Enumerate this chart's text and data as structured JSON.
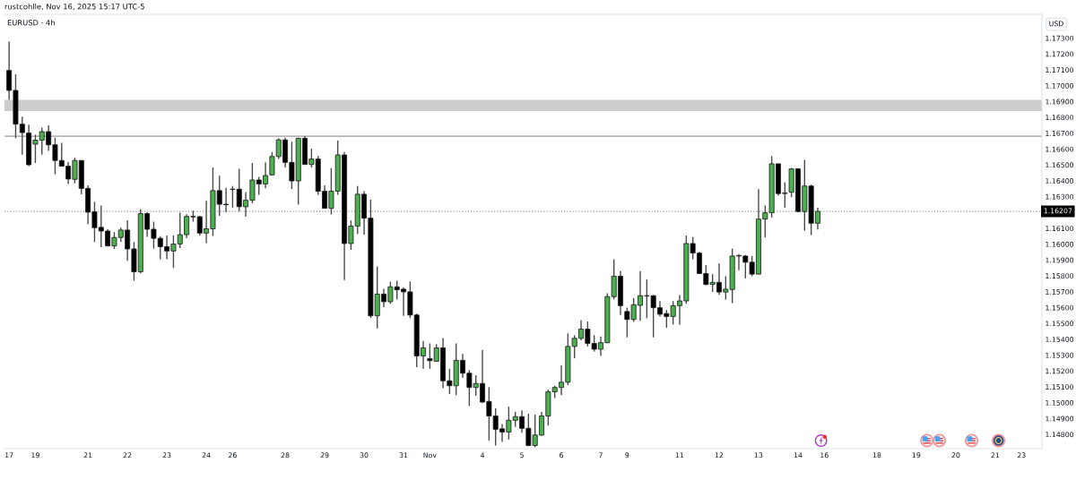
{
  "chart_data": {
    "type": "candlestick",
    "title": "EURUSD · 4h",
    "ylabel": "USD",
    "annotations": [
      "rustcohlle, Nov 16, 2025 15:17 UTC-5"
    ],
    "categories": [
      "17",
      null,
      null,
      null,
      "19",
      null,
      null,
      null,
      null,
      null,
      null,
      null,
      "21",
      null,
      null,
      null,
      null,
      null,
      "22",
      null,
      null,
      null,
      null,
      null,
      "23",
      null,
      null,
      null,
      null,
      null,
      "24",
      null,
      null,
      null,
      "26",
      null,
      null,
      null,
      null,
      null,
      null,
      null,
      "28",
      null,
      null,
      null,
      null,
      null,
      "29",
      null,
      null,
      null,
      null,
      null,
      "30",
      null,
      null,
      null,
      null,
      null,
      "31",
      null,
      null,
      null,
      "Nov",
      null,
      null,
      null,
      null,
      null,
      null,
      null,
      "4",
      null,
      null,
      null,
      null,
      null,
      "5",
      null,
      null,
      null,
      null,
      null,
      "6",
      null,
      null,
      null,
      null,
      null,
      "7",
      null,
      null,
      null,
      "9",
      null,
      null,
      null,
      null,
      null,
      null,
      null,
      "11",
      null,
      null,
      null,
      null,
      null,
      "12",
      null,
      null,
      null,
      null,
      null,
      "13",
      null,
      null,
      null,
      null,
      null,
      "14",
      null,
      null,
      null,
      "16",
      null,
      null,
      null,
      null,
      null,
      null,
      null,
      "18",
      null,
      null,
      null,
      null,
      null,
      "19",
      null,
      null,
      null,
      null,
      null,
      "20",
      null,
      null,
      null,
      null,
      null,
      "21",
      null,
      null,
      null,
      "23",
      null,
      null
    ],
    "ohlc": [
      [
        1.17096,
        1.17279,
        1.16911,
        1.1697
      ],
      [
        1.1697,
        1.17072,
        1.16668,
        1.16757
      ],
      [
        1.16757,
        1.16804,
        1.16565,
        1.16704
      ],
      [
        1.16701,
        1.16753,
        1.16493,
        1.16501
      ],
      [
        1.16631,
        1.16691,
        1.16512,
        1.16656
      ],
      [
        1.16656,
        1.16735,
        1.16565,
        1.1671
      ],
      [
        1.1671,
        1.1675,
        1.16588,
        1.16627
      ],
      [
        1.16627,
        1.16672,
        1.16441,
        1.16528
      ],
      [
        1.16528,
        1.1664,
        1.16489,
        1.16492
      ],
      [
        1.16492,
        1.16518,
        1.1638,
        1.16411
      ],
      [
        1.16409,
        1.16545,
        1.16384,
        1.16528
      ],
      [
        1.16528,
        1.16528,
        1.16315,
        1.16352
      ],
      [
        1.16352,
        1.16371,
        1.16126,
        1.16202
      ],
      [
        1.16204,
        1.16267,
        1.16013,
        1.16104
      ],
      [
        1.16106,
        1.16244,
        1.15981,
        1.16083
      ],
      [
        1.16083,
        1.16094,
        1.15985,
        1.15989
      ],
      [
        1.15989,
        1.16076,
        1.1597,
        1.16042
      ],
      [
        1.16042,
        1.16104,
        1.16013,
        1.16089
      ],
      [
        1.16089,
        1.1615,
        1.15895,
        1.1597
      ],
      [
        1.1597,
        1.16013,
        1.15769,
        1.15826
      ],
      [
        1.15826,
        1.16221,
        1.15816,
        1.16193
      ],
      [
        1.16193,
        1.16202,
        1.16046,
        1.16094
      ],
      [
        1.16094,
        1.16142,
        1.15972,
        1.16037
      ],
      [
        1.16037,
        1.16051,
        1.15905,
        1.15984
      ],
      [
        1.15984,
        1.16055,
        1.15905,
        1.15957
      ],
      [
        1.15957,
        1.16055,
        1.1585,
        1.16001
      ],
      [
        1.16001,
        1.16198,
        1.15976,
        1.1606
      ],
      [
        1.1606,
        1.16189,
        1.16038,
        1.16175
      ],
      [
        1.16175,
        1.16211,
        1.16142,
        1.16172
      ],
      [
        1.16173,
        1.16179,
        1.16055,
        1.1607
      ],
      [
        1.1607,
        1.16273,
        1.16007,
        1.16097
      ],
      [
        1.16097,
        1.16484,
        1.16051,
        1.16338
      ],
      [
        1.16338,
        1.16432,
        1.16179,
        1.16252
      ],
      [
        1.16252,
        1.16356,
        1.16202,
        1.16249
      ],
      [
        1.16347,
        1.16367,
        1.1623,
        1.16345
      ],
      [
        1.16347,
        1.16475,
        1.16207,
        1.16236
      ],
      [
        1.16236,
        1.16328,
        1.16173,
        1.16277
      ],
      [
        1.16277,
        1.16512,
        1.16258,
        1.16405
      ],
      [
        1.16405,
        1.16424,
        1.16311,
        1.1638
      ],
      [
        1.1638,
        1.16516,
        1.16352,
        1.16433
      ],
      [
        1.16437,
        1.16582,
        1.16432,
        1.16553
      ],
      [
        1.16553,
        1.16668,
        1.16537,
        1.16658
      ],
      [
        1.16658,
        1.16672,
        1.16484,
        1.16516
      ],
      [
        1.16516,
        1.16646,
        1.16348,
        1.16399
      ],
      [
        1.16399,
        1.16672,
        1.16249,
        1.16668
      ],
      [
        1.16668,
        1.16681,
        1.16503,
        1.16503
      ],
      [
        1.16503,
        1.16602,
        1.16484,
        1.16537
      ],
      [
        1.16537,
        1.16556,
        1.16311,
        1.16334
      ],
      [
        1.16334,
        1.16371,
        1.16226,
        1.16226
      ],
      [
        1.16226,
        1.1648,
        1.16187,
        1.16334
      ],
      [
        1.16334,
        1.16654,
        1.16311,
        1.16563
      ],
      [
        1.16563,
        1.16582,
        1.15773,
        1.16004
      ],
      [
        1.16004,
        1.1615,
        1.15964,
        1.16114
      ],
      [
        1.16114,
        1.16367,
        1.16064,
        1.16315
      ],
      [
        1.16315,
        1.16334,
        1.1606,
        1.16164
      ],
      [
        1.16164,
        1.16281,
        1.15534,
        1.15548
      ],
      [
        1.15548,
        1.15859,
        1.15468,
        1.15685
      ],
      [
        1.15685,
        1.15718,
        1.15603,
        1.15637
      ],
      [
        1.15637,
        1.15763,
        1.15624,
        1.15731
      ],
      [
        1.15731,
        1.15769,
        1.1565,
        1.15712
      ],
      [
        1.15716,
        1.15727,
        1.15548,
        1.15699
      ],
      [
        1.15699,
        1.15765,
        1.15534,
        1.15553
      ],
      [
        1.15553,
        1.15562,
        1.15224,
        1.15295
      ],
      [
        1.15295,
        1.15389,
        1.15214,
        1.15346
      ],
      [
        1.15278,
        1.15374,
        1.15214,
        1.15265
      ],
      [
        1.15261,
        1.1537,
        1.15261,
        1.15346
      ],
      [
        1.15346,
        1.15408,
        1.15092,
        1.15138
      ],
      [
        1.15138,
        1.15214,
        1.15054,
        1.15107
      ],
      [
        1.15107,
        1.15374,
        1.15048,
        1.15267
      ],
      [
        1.15267,
        1.15308,
        1.15157,
        1.15186
      ],
      [
        1.15186,
        1.15205,
        1.14979,
        1.15096
      ],
      [
        1.15096,
        1.15173,
        1.15044,
        1.15121
      ],
      [
        1.15121,
        1.15333,
        1.14998,
        1.15004
      ],
      [
        1.15008,
        1.15098,
        1.14762,
        1.14916
      ],
      [
        1.14916,
        1.14964,
        1.1473,
        1.14832
      ],
      [
        1.14835,
        1.14866,
        1.14753,
        1.14815
      ],
      [
        1.14815,
        1.14975,
        1.14768,
        1.14889
      ],
      [
        1.14889,
        1.14941,
        1.14847,
        1.14912
      ],
      [
        1.14912,
        1.14951,
        1.1481,
        1.14838
      ],
      [
        1.14838,
        1.14931,
        1.14725,
        1.1473
      ],
      [
        1.1473,
        1.14925,
        1.14719,
        1.14796
      ],
      [
        1.14796,
        1.14941,
        1.14791,
        1.14916
      ],
      [
        1.14916,
        1.15082,
        1.14856,
        1.15069
      ],
      [
        1.15069,
        1.15107,
        1.15029,
        1.15096
      ],
      [
        1.15096,
        1.15236,
        1.15048,
        1.15129
      ],
      [
        1.15129,
        1.15437,
        1.15111,
        1.15355
      ],
      [
        1.15355,
        1.15425,
        1.1528,
        1.15406
      ],
      [
        1.15406,
        1.15521,
        1.15393,
        1.15464
      ],
      [
        1.15464,
        1.15512,
        1.15355,
        1.15374
      ],
      [
        1.15374,
        1.15425,
        1.15322,
        1.15337
      ],
      [
        1.15337,
        1.15417,
        1.15295,
        1.15378
      ],
      [
        1.15378,
        1.1569,
        1.15378,
        1.15669
      ],
      [
        1.15669,
        1.15905,
        1.15652,
        1.15798
      ],
      [
        1.15798,
        1.15832,
        1.15553,
        1.15612
      ],
      [
        1.15575,
        1.15599,
        1.15412,
        1.15525
      ],
      [
        1.15525,
        1.1566,
        1.1551,
        1.15618
      ],
      [
        1.15614,
        1.1583,
        1.15516,
        1.15675
      ],
      [
        1.15675,
        1.15777,
        1.15534,
        1.15673
      ],
      [
        1.15675,
        1.15679,
        1.15412,
        1.15599
      ],
      [
        1.15599,
        1.15641,
        1.15544,
        1.15558
      ],
      [
        1.15562,
        1.15585,
        1.15472,
        1.15544
      ],
      [
        1.15544,
        1.15641,
        1.15493,
        1.15612
      ],
      [
        1.15612,
        1.15679,
        1.15493,
        1.15642
      ],
      [
        1.15642,
        1.16055,
        1.15624,
        1.16004
      ],
      [
        1.16004,
        1.16046,
        1.15905,
        1.15944
      ],
      [
        1.15944,
        1.15951,
        1.15811,
        1.15815
      ],
      [
        1.15815,
        1.15868,
        1.15741,
        1.15746
      ],
      [
        1.15746,
        1.15811,
        1.15699,
        1.15759
      ],
      [
        1.15759,
        1.15878,
        1.15681,
        1.15698
      ],
      [
        1.15698,
        1.15798,
        1.1565,
        1.15716
      ],
      [
        1.15714,
        1.15972,
        1.15628,
        1.15925
      ],
      [
        1.15925,
        1.15938,
        1.15835,
        1.15928
      ],
      [
        1.15925,
        1.15932,
        1.15784,
        1.15886
      ],
      [
        1.15886,
        1.15925,
        1.15798,
        1.15811
      ],
      [
        1.15811,
        1.16347,
        1.15811,
        1.16158
      ],
      [
        1.16158,
        1.16244,
        1.16042,
        1.16198
      ],
      [
        1.16198,
        1.16556,
        1.16168,
        1.16507
      ],
      [
        1.16507,
        1.16507,
        1.16306,
        1.16319
      ],
      [
        1.16319,
        1.1639,
        1.1623,
        1.16324
      ],
      [
        1.16328,
        1.1648,
        1.16296,
        1.16475
      ],
      [
        1.16475,
        1.16478,
        1.16202,
        1.16206
      ],
      [
        1.16206,
        1.16532,
        1.16085,
        1.16367
      ],
      [
        1.16367,
        1.16375,
        1.16057,
        1.16132
      ],
      [
        1.16132,
        1.1623,
        1.16093,
        1.16207
      ],
      null,
      null,
      null,
      null,
      null,
      null,
      null,
      null,
      null,
      null,
      null,
      null,
      null,
      null,
      null,
      null,
      null,
      null,
      null,
      null,
      null,
      null,
      null,
      null,
      null,
      null,
      null,
      null,
      null,
      null,
      null,
      null,
      null
    ],
    "colors": [
      "#000000",
      "#000000",
      "#000000",
      "#000000",
      "#4caf50",
      "#4caf50",
      "#000000",
      "#000000",
      "#000000",
      "#000000",
      "#4caf50",
      "#000000",
      "#000000",
      "#000000",
      "#000000",
      "#000000",
      "#4caf50",
      "#4caf50",
      "#000000",
      "#000000",
      "#4caf50",
      "#000000",
      "#000000",
      "#000000",
      "#000000",
      "#4caf50",
      "#4caf50",
      "#4caf50",
      "#000000",
      "#000000",
      "#4caf50",
      "#4caf50",
      "#000000",
      "#000000",
      "#000000",
      "#000000",
      "#4caf50",
      "#4caf50",
      "#000000",
      "#4caf50",
      "#4caf50",
      "#4caf50",
      "#000000",
      "#000000",
      "#4caf50",
      "#000000",
      "#4caf50",
      "#000000",
      "#000000",
      "#4caf50",
      "#4caf50",
      "#000000",
      "#4caf50",
      "#4caf50",
      "#000000",
      "#000000",
      "#4caf50",
      "#000000",
      "#4caf50",
      "#000000",
      "#000000",
      "#000000",
      "#000000",
      "#4caf50",
      "#000000",
      "#4caf50",
      "#000000",
      "#000000",
      "#4caf50",
      "#000000",
      "#000000",
      "#4caf50",
      "#000000",
      "#000000",
      "#000000",
      "#000000",
      "#4caf50",
      "#4caf50",
      "#000000",
      "#000000",
      "#4caf50",
      "#4caf50",
      "#4caf50",
      "#4caf50",
      "#4caf50",
      "#4caf50",
      "#4caf50",
      "#4caf50",
      "#000000",
      "#000000",
      "#4caf50",
      "#4caf50",
      "#4caf50",
      "#000000",
      "#000000",
      "#4caf50",
      "#4caf50",
      "#000000",
      "#000000",
      "#000000",
      "#000000",
      "#4caf50",
      "#4caf50",
      "#4caf50",
      "#000000",
      "#000000",
      "#000000",
      "#4caf50",
      "#000000",
      "#4caf50",
      "#4caf50",
      "#4caf50",
      "#000000",
      "#000000",
      "#4caf50",
      "#4caf50",
      "#4caf50",
      "#000000",
      "#4caf50",
      "#4caf50",
      "#000000",
      "#4caf50",
      "#000000",
      "#4caf50",
      null,
      null,
      null,
      null,
      null,
      null,
      null,
      null,
      null,
      null,
      null,
      null,
      null,
      null,
      null,
      null,
      null,
      null,
      null,
      null,
      null,
      null,
      null,
      null,
      null,
      null,
      null,
      null,
      null,
      null,
      null,
      null,
      null
    ],
    "ylim": [
      1.1471,
      1.1745
    ],
    "yticks": [
      {
        "value": 1.173,
        "label": "1.17300"
      },
      {
        "value": 1.172,
        "label": "1.17200"
      },
      {
        "value": 1.171,
        "label": "1.17100"
      },
      {
        "value": 1.17,
        "label": "1.17000"
      },
      {
        "value": 1.169,
        "label": "1.16900"
      },
      {
        "value": 1.168,
        "label": "1.16800"
      },
      {
        "value": 1.167,
        "label": "1.16700"
      },
      {
        "value": 1.166,
        "label": "1.16600"
      },
      {
        "value": 1.165,
        "label": "1.16500"
      },
      {
        "value": 1.164,
        "label": "1.16400"
      },
      {
        "value": 1.163,
        "label": "1.16300"
      },
      {
        "value": 1.161,
        "label": "1.16100"
      },
      {
        "value": 1.16,
        "label": "1.16000"
      },
      {
        "value": 1.159,
        "label": "1.15900"
      },
      {
        "value": 1.158,
        "label": "1.15800"
      },
      {
        "value": 1.157,
        "label": "1.15700"
      },
      {
        "value": 1.156,
        "label": "1.15600"
      },
      {
        "value": 1.155,
        "label": "1.15500"
      },
      {
        "value": 1.154,
        "label": "1.15400"
      },
      {
        "value": 1.153,
        "label": "1.15300"
      },
      {
        "value": 1.152,
        "label": "1.15200"
      },
      {
        "value": 1.151,
        "label": "1.15100"
      },
      {
        "value": 1.15,
        "label": "1.15000"
      },
      {
        "value": 1.149,
        "label": "1.14900"
      },
      {
        "value": 1.148,
        "label": "1.14800"
      }
    ],
    "ref_lines": [
      {
        "axis": "y",
        "value": 1.16207,
        "label": "1.16207",
        "color": "#9598a1",
        "line_style": "dotted"
      },
      {
        "axis": "y",
        "value": 1.16681,
        "color": "#9e9e9e",
        "line_style": "solid"
      }
    ],
    "bands": [
      {
        "axis": "y",
        "from": 1.1684,
        "to": 1.1691,
        "color": "#cccccc"
      }
    ]
  }
}
